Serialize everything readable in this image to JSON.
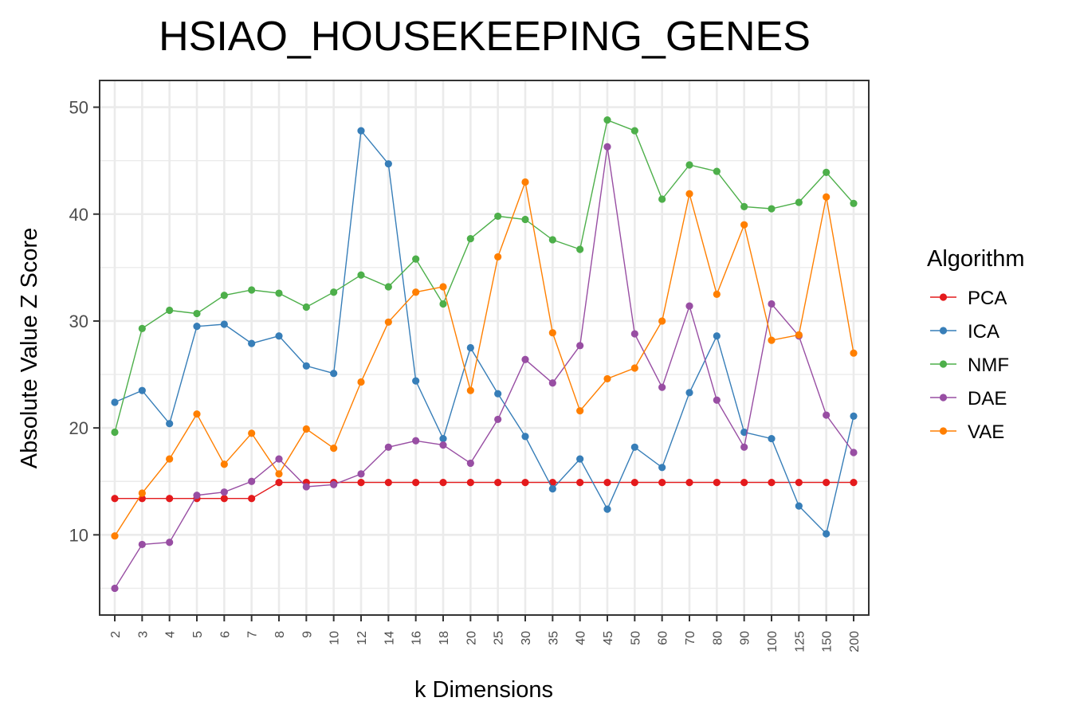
{
  "chart_data": {
    "type": "line",
    "title": "HSIAO_HOUSEKEEPING_GENES",
    "xlabel": "k Dimensions",
    "ylabel": "Absolute Value Z Score",
    "categories": [
      "2",
      "3",
      "4",
      "5",
      "6",
      "7",
      "8",
      "9",
      "10",
      "12",
      "14",
      "16",
      "18",
      "20",
      "25",
      "30",
      "35",
      "40",
      "45",
      "50",
      "60",
      "70",
      "80",
      "90",
      "100",
      "125",
      "150",
      "200"
    ],
    "y_ticks": [
      10,
      20,
      30,
      40,
      50
    ],
    "ylim": [
      2.5,
      52.5
    ],
    "grid": true,
    "legend": {
      "title": "Algorithm",
      "placement": "right"
    },
    "series": [
      {
        "name": "PCA",
        "color": "#E41A1C",
        "values": [
          13.4,
          13.4,
          13.4,
          13.4,
          13.4,
          13.4,
          14.9,
          14.9,
          14.9,
          14.9,
          14.9,
          14.9,
          14.9,
          14.9,
          14.9,
          14.9,
          14.9,
          14.9,
          14.9,
          14.9,
          14.9,
          14.9,
          14.9,
          14.9,
          14.9,
          14.9,
          14.9,
          14.9
        ]
      },
      {
        "name": "ICA",
        "color": "#377EB8",
        "values": [
          22.4,
          23.5,
          20.4,
          29.5,
          29.7,
          27.9,
          28.6,
          25.8,
          25.1,
          47.8,
          44.7,
          24.4,
          19.0,
          27.5,
          23.2,
          19.2,
          14.3,
          17.1,
          12.4,
          18.2,
          16.3,
          23.3,
          28.6,
          19.6,
          19.0,
          12.7,
          10.1,
          21.1
        ]
      },
      {
        "name": "NMF",
        "color": "#4DAF4A",
        "values": [
          19.6,
          29.3,
          31.0,
          30.7,
          32.4,
          32.9,
          32.6,
          31.3,
          32.7,
          34.3,
          33.2,
          35.8,
          31.6,
          37.7,
          39.8,
          39.5,
          37.6,
          36.7,
          48.8,
          47.8,
          41.4,
          44.6,
          44.0,
          40.7,
          40.5,
          41.1,
          43.9,
          41.0
        ]
      },
      {
        "name": "DAE",
        "color": "#984EA3",
        "values": [
          5.0,
          9.1,
          9.3,
          13.7,
          14.0,
          15.0,
          17.1,
          14.5,
          14.7,
          15.7,
          18.2,
          18.8,
          18.4,
          16.7,
          20.8,
          26.4,
          24.2,
          27.7,
          46.3,
          28.8,
          23.8,
          31.4,
          22.6,
          18.2,
          31.6,
          28.6,
          21.2,
          17.7
        ]
      },
      {
        "name": "VAE",
        "color": "#FF7F00",
        "values": [
          9.9,
          13.9,
          17.1,
          21.3,
          16.6,
          19.5,
          15.7,
          19.9,
          18.1,
          24.3,
          29.9,
          32.7,
          33.2,
          23.5,
          36.0,
          43.0,
          28.9,
          21.6,
          24.6,
          25.6,
          30.0,
          41.9,
          32.5,
          39.0,
          28.2,
          28.7,
          41.6,
          27.0
        ]
      }
    ]
  }
}
